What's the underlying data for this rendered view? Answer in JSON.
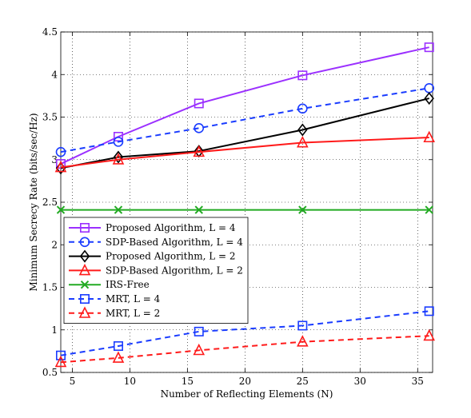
{
  "chart_data": {
    "type": "line",
    "xlabel": "Number of Reflecting Elements (N)",
    "ylabel": "Minimum Secrecy Rate (bits/sec/Hz)",
    "xlim": [
      4,
      36.3
    ],
    "ylim": [
      0.5,
      4.5
    ],
    "xticks": [
      5,
      10,
      15,
      20,
      25,
      30,
      35
    ],
    "yticks": [
      0.5,
      1,
      1.5,
      2,
      2.5,
      3,
      3.5,
      4,
      4.5
    ],
    "grid": true,
    "legend_position": "center-left",
    "series": [
      {
        "name": "Proposed Algorithm, L = 4",
        "color": "#9b30ff",
        "dash": "solid",
        "marker": "square",
        "x": [
          4,
          9,
          16,
          25,
          36
        ],
        "y": [
          2.95,
          3.27,
          3.66,
          3.99,
          4.32
        ]
      },
      {
        "name": "SDP-Based Algorithm, L = 4",
        "color": "#1a3cff",
        "dash": "dashed",
        "marker": "circle",
        "x": [
          4,
          9,
          16,
          25,
          36
        ],
        "y": [
          3.09,
          3.21,
          3.37,
          3.6,
          3.84
        ]
      },
      {
        "name": "Proposed Algorithm, L = 2",
        "color": "#000000",
        "dash": "solid",
        "marker": "diamond",
        "x": [
          4,
          9,
          16,
          25,
          36
        ],
        "y": [
          2.9,
          3.03,
          3.1,
          3.35,
          3.72
        ]
      },
      {
        "name": "SDP-Based Algorithm, L = 2",
        "color": "#ff1a1a",
        "dash": "solid",
        "marker": "triangle",
        "x": [
          4,
          9,
          16,
          25,
          36
        ],
        "y": [
          2.91,
          3.0,
          3.09,
          3.2,
          3.26
        ]
      },
      {
        "name": "IRS-Free",
        "color": "#22aa22",
        "dash": "solid",
        "marker": "x",
        "x": [
          4,
          9,
          16,
          25,
          36
        ],
        "y": [
          2.41,
          2.41,
          2.41,
          2.41,
          2.41
        ]
      },
      {
        "name": "MRT, L = 4",
        "color": "#1a3cff",
        "dash": "dashed",
        "marker": "square",
        "x": [
          4,
          9,
          16,
          25,
          36
        ],
        "y": [
          0.7,
          0.81,
          0.98,
          1.05,
          1.22
        ]
      },
      {
        "name": "MRT, L = 2",
        "color": "#ff1a1a",
        "dash": "dashed",
        "marker": "triangle",
        "x": [
          4,
          9,
          16,
          25,
          36
        ],
        "y": [
          0.62,
          0.67,
          0.76,
          0.86,
          0.93
        ]
      }
    ]
  }
}
